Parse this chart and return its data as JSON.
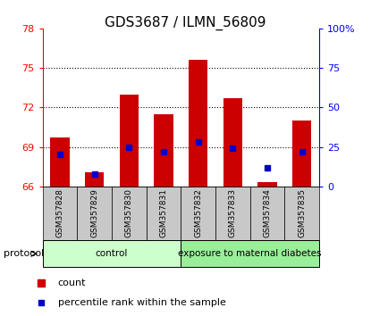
{
  "title": "GDS3687 / ILMN_56809",
  "samples": [
    "GSM357828",
    "GSM357829",
    "GSM357830",
    "GSM357831",
    "GSM357832",
    "GSM357833",
    "GSM357834",
    "GSM357835"
  ],
  "count_values": [
    69.7,
    67.1,
    73.0,
    71.5,
    75.6,
    72.7,
    66.3,
    71.0
  ],
  "percentile_values": [
    20.0,
    8.0,
    25.0,
    22.0,
    28.0,
    24.0,
    12.0,
    22.0
  ],
  "ylim_left": [
    66,
    78
  ],
  "ylim_right": [
    0,
    100
  ],
  "yticks_left": [
    66,
    69,
    72,
    75,
    78
  ],
  "yticks_right": [
    0,
    25,
    50,
    75,
    100
  ],
  "ytick_labels_right": [
    "0",
    "25",
    "50",
    "75",
    "100%"
  ],
  "bar_color": "#cc0000",
  "marker_color": "#0000cc",
  "bar_bottom": 66,
  "groups": [
    {
      "label": "control",
      "start": 0,
      "end": 4,
      "color": "#ccffcc"
    },
    {
      "label": "exposure to maternal diabetes",
      "start": 4,
      "end": 8,
      "color": "#99ee99"
    }
  ],
  "protocol_label": "protocol",
  "legend_items": [
    {
      "label": "count",
      "color": "#cc0000"
    },
    {
      "label": "percentile rank within the sample",
      "color": "#0000cc"
    }
  ],
  "title_fontsize": 11,
  "bar_width": 0.55
}
